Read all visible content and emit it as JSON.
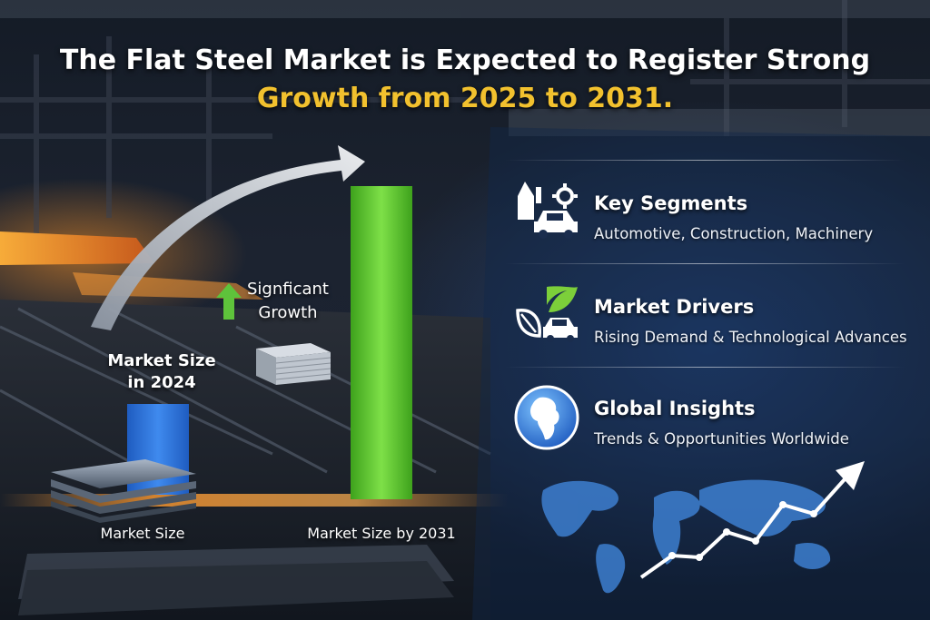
{
  "headline": {
    "line1": "The Flat Steel Market is Expected to Register Strong",
    "line2": "Growth from 2025 to 2031."
  },
  "chart": {
    "bar_2024_label": "Market Size\nin 2024",
    "growth_label": "Signficant\nGrowth",
    "base_label_left": "Market Size",
    "base_label_right": "Market Size by 2031",
    "colors": {
      "bar_2024": "#2f74d6",
      "bar_2031": "#5cc52e",
      "growth_arrow": "#58c63a"
    }
  },
  "panel": {
    "rows": [
      {
        "title": "Key Segments",
        "desc": "Automotive, Construction, Machinery",
        "icon": "factory-car-icon"
      },
      {
        "title": "Market Drivers",
        "desc": "Rising Demand & Technological Advances",
        "icon": "leaf-car-icon"
      },
      {
        "title": "Global Insights",
        "desc": "Trends & Opportunities Worldwide",
        "icon": "globe-icon"
      }
    ]
  },
  "map": {
    "icon": "world-map-icon",
    "trend_icon": "trend-arrow-icon"
  }
}
